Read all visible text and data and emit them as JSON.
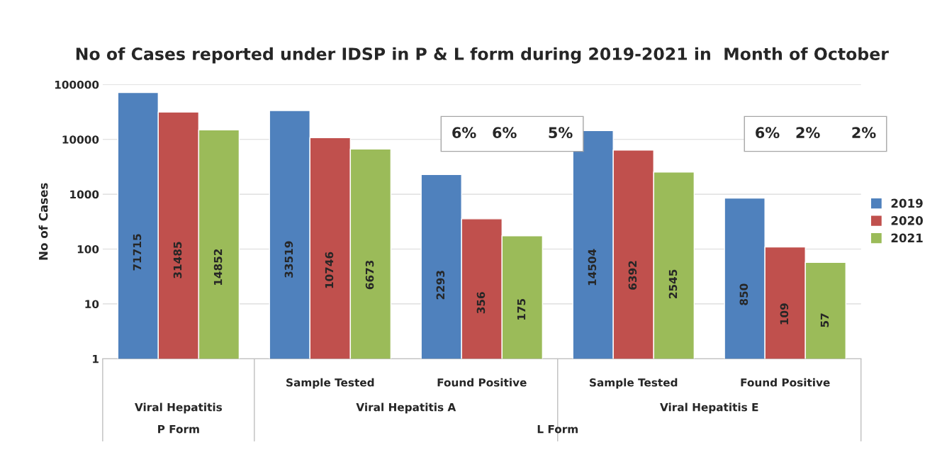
{
  "chart_data": {
    "type": "bar",
    "title": "No of Cases reported under IDSP in P & L form during 2019-2021 in  Month of October",
    "ylabel": "No of Cases",
    "categories": [
      null,
      "Sample Tested",
      "Found Positive",
      "Sample Tested",
      "Found Positive"
    ],
    "series": [
      {
        "name": "2019",
        "color": "#4f81bd",
        "values": [
          71715,
          33519,
          2293,
          14504,
          850
        ]
      },
      {
        "name": "2020",
        "color": "#c0504d",
        "values": [
          31485,
          10746,
          356,
          6392,
          109
        ]
      },
      {
        "name": "2021",
        "color": "#9bbb59",
        "values": [
          14852,
          6673,
          175,
          2545,
          57
        ]
      }
    ],
    "log": true,
    "ylim": [
      1,
      100000
    ],
    "yticks": [
      1,
      10,
      100,
      1000,
      10000,
      100000
    ],
    "grid": "y",
    "legend": "right",
    "data_labels": true,
    "annotations": [
      "Viral Hepatitis",
      "Viral Hepatitis A",
      "Viral Hepatitis E",
      "P Form",
      "L Form",
      "6%   6%      5%",
      "6%   2%      2%"
    ]
  }
}
